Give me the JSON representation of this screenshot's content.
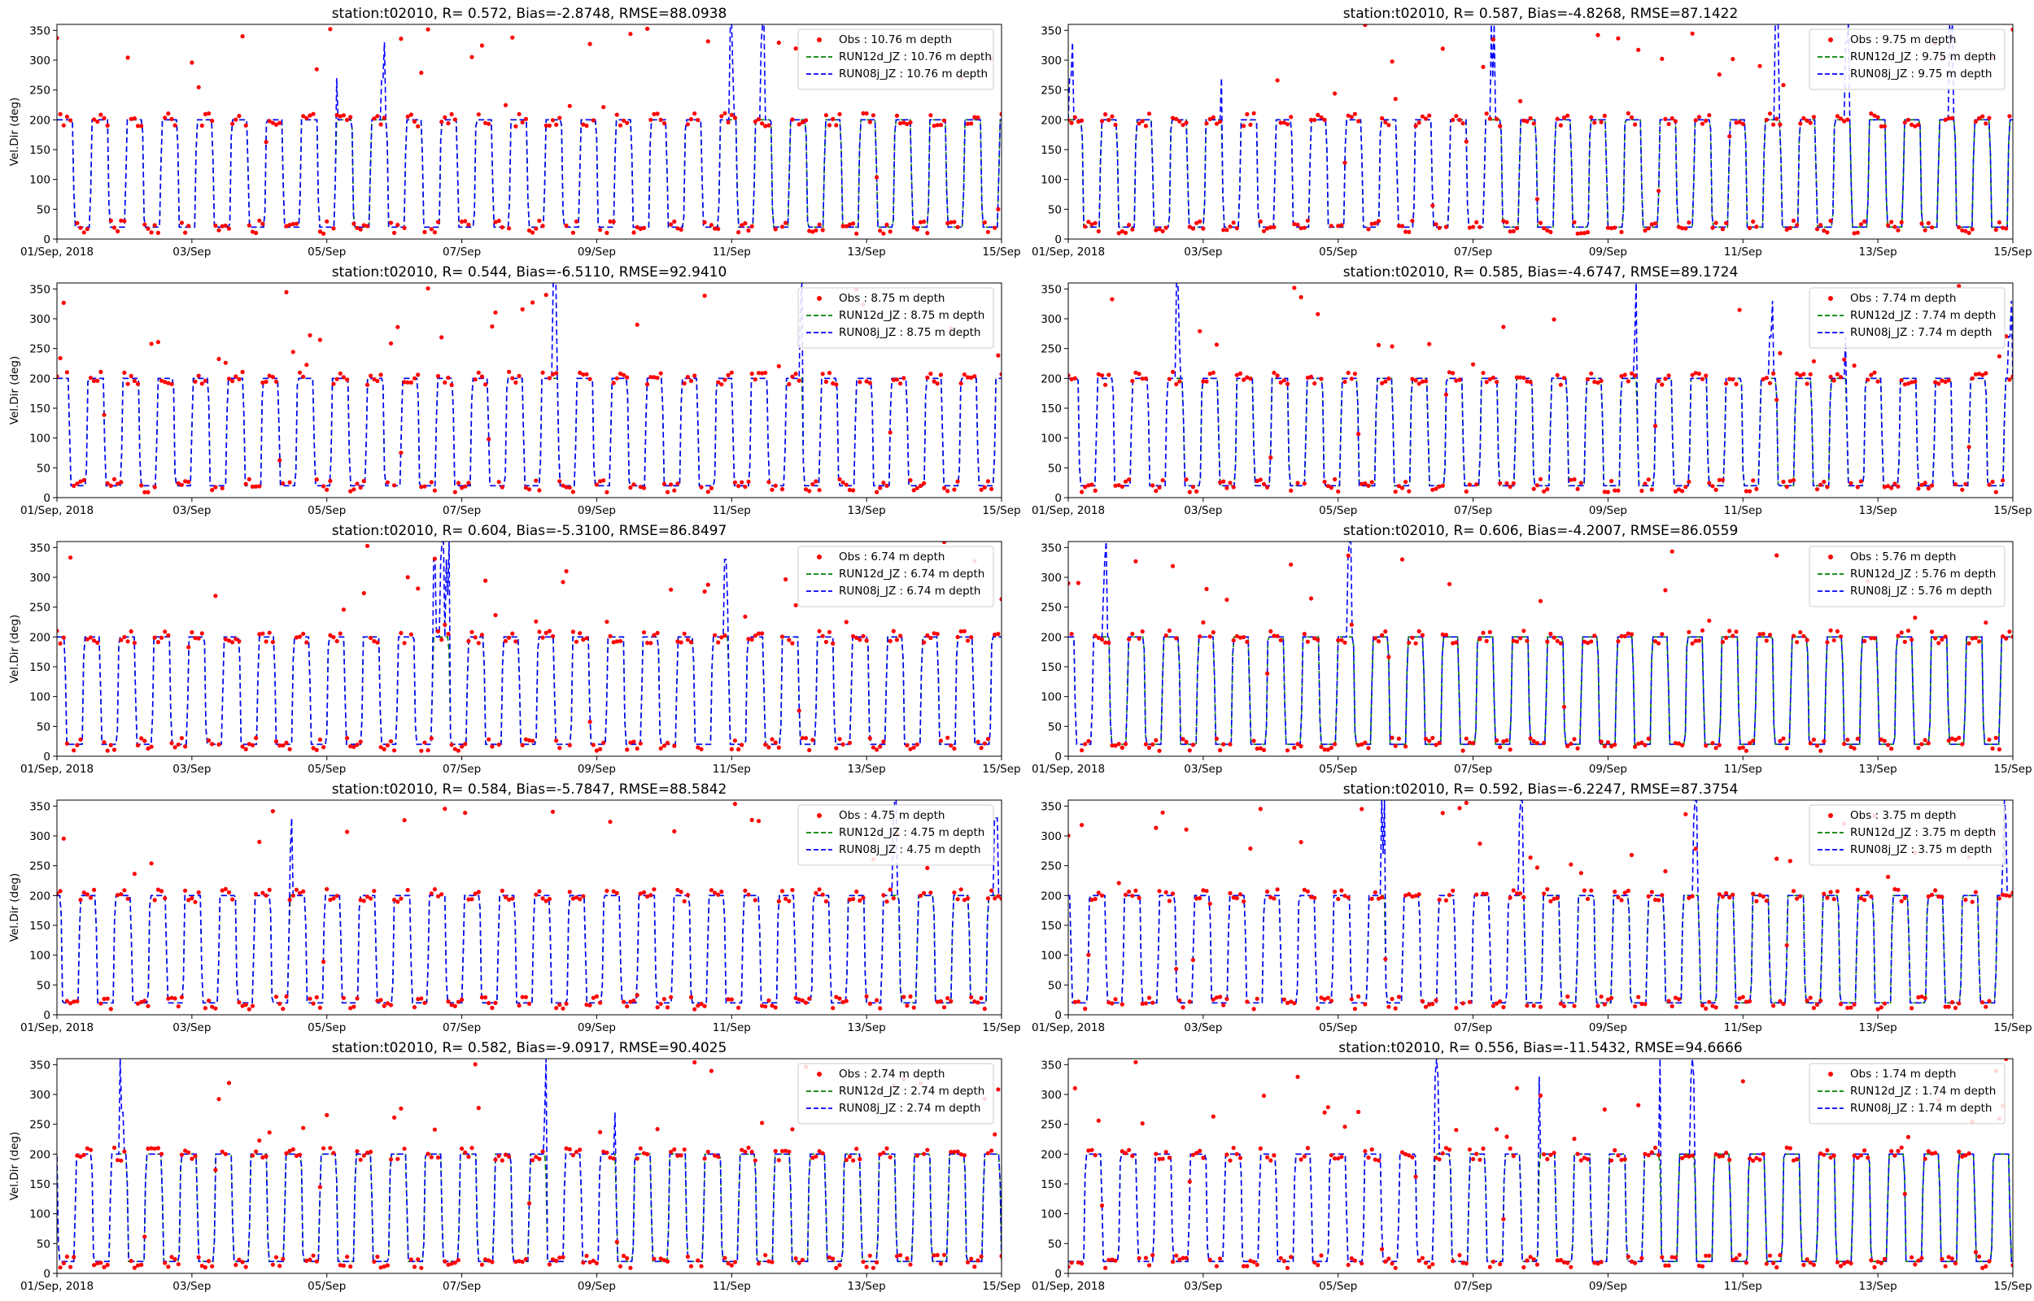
{
  "figure": {
    "station": "station:t02010"
  },
  "colors": {
    "obs": "#ff0000",
    "run12d": "#008000",
    "run08j": "#0000ff",
    "axis": "#000000",
    "legend_border": "#cccccc"
  },
  "chart_data": [
    {
      "type": "scatter+line",
      "title": "station:t02010, R= 0.572, Bias=-2.8748, RMSE=88.0938",
      "depth": "10.76",
      "ylabel": "Vel.Dir (deg)",
      "ylim": [
        0,
        360
      ],
      "yticks": [
        0,
        50,
        100,
        150,
        200,
        250,
        300,
        350
      ],
      "xrange": [
        "2018-09-01",
        "2018-09-15"
      ],
      "xticks": [
        "01/Sep, 2018",
        "03/Sep",
        "05/Sep",
        "07/Sep",
        "09/Sep",
        "11/Sep",
        "13/Sep",
        "15/Sep"
      ],
      "legend_position": "upper right",
      "series": [
        {
          "name": "Obs : 10.76 m depth",
          "kind": "points"
        },
        {
          "name": "RUN12d_JZ : 10.76 m depth",
          "kind": "dashed-line"
        },
        {
          "name": "RUN08j_JZ : 10.76 m depth",
          "kind": "dashed-line"
        }
      ]
    },
    {
      "type": "scatter+line",
      "title": "station:t02010, R= 0.587, Bias=-4.8268, RMSE=87.1422",
      "depth": "9.75",
      "ylabel": "",
      "ylim": [
        0,
        360
      ],
      "yticks": [
        0,
        50,
        100,
        150,
        200,
        250,
        300,
        350
      ],
      "xrange": [
        "2018-09-01",
        "2018-09-15"
      ],
      "xticks": [
        "01/Sep, 2018",
        "03/Sep",
        "05/Sep",
        "07/Sep",
        "09/Sep",
        "11/Sep",
        "13/Sep",
        "15/Sep"
      ],
      "legend_position": "upper right",
      "series": [
        {
          "name": "Obs : 9.75 m depth",
          "kind": "points"
        },
        {
          "name": "RUN12d_JZ : 9.75 m depth",
          "kind": "dashed-line"
        },
        {
          "name": "RUN08j_JZ : 9.75 m depth",
          "kind": "dashed-line"
        }
      ]
    },
    {
      "type": "scatter+line",
      "title": "station:t02010, R= 0.544, Bias=-6.5110, RMSE=92.9410",
      "depth": "8.75",
      "ylabel": "Vel.Dir (deg)",
      "ylim": [
        0,
        360
      ],
      "yticks": [
        0,
        50,
        100,
        150,
        200,
        250,
        300,
        350
      ],
      "xrange": [
        "2018-09-01",
        "2018-09-15"
      ],
      "xticks": [
        "01/Sep, 2018",
        "03/Sep",
        "05/Sep",
        "07/Sep",
        "09/Sep",
        "11/Sep",
        "13/Sep",
        "15/Sep"
      ],
      "legend_position": "upper right",
      "series": [
        {
          "name": "Obs : 8.75 m depth",
          "kind": "points"
        },
        {
          "name": "RUN12d_JZ : 8.75 m depth",
          "kind": "dashed-line"
        },
        {
          "name": "RUN08j_JZ : 8.75 m depth",
          "kind": "dashed-line"
        }
      ]
    },
    {
      "type": "scatter+line",
      "title": "station:t02010, R= 0.585, Bias=-4.6747, RMSE=89.1724",
      "depth": "7.74",
      "ylabel": "",
      "ylim": [
        0,
        360
      ],
      "yticks": [
        0,
        50,
        100,
        150,
        200,
        250,
        300,
        350
      ],
      "xrange": [
        "2018-09-01",
        "2018-09-15"
      ],
      "xticks": [
        "01/Sep, 2018",
        "03/Sep",
        "05/Sep",
        "07/Sep",
        "09/Sep",
        "11/Sep",
        "13/Sep",
        "15/Sep"
      ],
      "legend_position": "upper right",
      "series": [
        {
          "name": "Obs : 7.74 m depth",
          "kind": "points"
        },
        {
          "name": "RUN12d_JZ : 7.74 m depth",
          "kind": "dashed-line"
        },
        {
          "name": "RUN08j_JZ : 7.74 m depth",
          "kind": "dashed-line"
        }
      ]
    },
    {
      "type": "scatter+line",
      "title": "station:t02010, R= 0.604, Bias=-5.3100, RMSE=86.8497",
      "depth": "6.74",
      "ylabel": "Vel.Dir (deg)",
      "ylim": [
        0,
        360
      ],
      "yticks": [
        0,
        50,
        100,
        150,
        200,
        250,
        300,
        350
      ],
      "xrange": [
        "2018-09-01",
        "2018-09-15"
      ],
      "xticks": [
        "01/Sep, 2018",
        "03/Sep",
        "05/Sep",
        "07/Sep",
        "09/Sep",
        "11/Sep",
        "13/Sep",
        "15/Sep"
      ],
      "legend_position": "upper right",
      "series": [
        {
          "name": "Obs : 6.74 m depth",
          "kind": "points"
        },
        {
          "name": "RUN12d_JZ : 6.74 m depth",
          "kind": "dashed-line"
        },
        {
          "name": "RUN08j_JZ : 6.74 m depth",
          "kind": "dashed-line"
        }
      ]
    },
    {
      "type": "scatter+line",
      "title": "station:t02010, R= 0.606, Bias=-4.2007, RMSE=86.0559",
      "depth": "5.76",
      "ylabel": "",
      "ylim": [
        0,
        360
      ],
      "yticks": [
        0,
        50,
        100,
        150,
        200,
        250,
        300,
        350
      ],
      "xrange": [
        "2018-09-01",
        "2018-09-15"
      ],
      "xticks": [
        "01/Sep, 2018",
        "03/Sep",
        "05/Sep",
        "07/Sep",
        "09/Sep",
        "11/Sep",
        "13/Sep",
        "15/Sep"
      ],
      "legend_position": "upper right",
      "series": [
        {
          "name": "Obs : 5.76 m depth",
          "kind": "points"
        },
        {
          "name": "RUN12d_JZ : 5.76 m depth",
          "kind": "dashed-line"
        },
        {
          "name": "RUN08j_JZ : 5.76 m depth",
          "kind": "dashed-line"
        }
      ]
    },
    {
      "type": "scatter+line",
      "title": "station:t02010, R= 0.584, Bias=-5.7847, RMSE=88.5842",
      "depth": "4.75",
      "ylabel": "Vel.Dir (deg)",
      "ylim": [
        0,
        360
      ],
      "yticks": [
        0,
        50,
        100,
        150,
        200,
        250,
        300,
        350
      ],
      "xrange": [
        "2018-09-01",
        "2018-09-15"
      ],
      "xticks": [
        "01/Sep, 2018",
        "03/Sep",
        "05/Sep",
        "07/Sep",
        "09/Sep",
        "11/Sep",
        "13/Sep",
        "15/Sep"
      ],
      "legend_position": "upper right",
      "series": [
        {
          "name": "Obs : 4.75 m depth",
          "kind": "points"
        },
        {
          "name": "RUN12d_JZ : 4.75 m depth",
          "kind": "dashed-line"
        },
        {
          "name": "RUN08j_JZ : 4.75 m depth",
          "kind": "dashed-line"
        }
      ]
    },
    {
      "type": "scatter+line",
      "title": "station:t02010, R= 0.592, Bias=-6.2247, RMSE=87.3754",
      "depth": "3.75",
      "ylabel": "",
      "ylim": [
        0,
        360
      ],
      "yticks": [
        0,
        50,
        100,
        150,
        200,
        250,
        300,
        350
      ],
      "xrange": [
        "2018-09-01",
        "2018-09-15"
      ],
      "xticks": [
        "01/Sep, 2018",
        "03/Sep",
        "05/Sep",
        "07/Sep",
        "09/Sep",
        "11/Sep",
        "13/Sep",
        "15/Sep"
      ],
      "legend_position": "upper right",
      "series": [
        {
          "name": "Obs : 3.75 m depth",
          "kind": "points"
        },
        {
          "name": "RUN12d_JZ : 3.75 m depth",
          "kind": "dashed-line"
        },
        {
          "name": "RUN08j_JZ : 3.75 m depth",
          "kind": "dashed-line"
        }
      ]
    },
    {
      "type": "scatter+line",
      "title": "station:t02010, R= 0.582, Bias=-9.0917, RMSE=90.4025",
      "depth": "2.74",
      "ylabel": "Vel.Dir (deg)",
      "ylim": [
        0,
        360
      ],
      "yticks": [
        0,
        50,
        100,
        150,
        200,
        250,
        300,
        350
      ],
      "xrange": [
        "2018-09-01",
        "2018-09-15"
      ],
      "xticks": [
        "01/Sep, 2018",
        "03/Sep",
        "05/Sep",
        "07/Sep",
        "09/Sep",
        "11/Sep",
        "13/Sep",
        "15/Sep"
      ],
      "legend_position": "upper right",
      "series": [
        {
          "name": "Obs : 2.74 m depth",
          "kind": "points"
        },
        {
          "name": "RUN12d_JZ : 2.74 m depth",
          "kind": "dashed-line"
        },
        {
          "name": "RUN08j_JZ : 2.74 m depth",
          "kind": "dashed-line"
        }
      ]
    },
    {
      "type": "scatter+line",
      "title": "station:t02010, R= 0.556, Bias=-11.5432, RMSE=94.6666",
      "depth": "1.74",
      "ylabel": "",
      "ylim": [
        0,
        360
      ],
      "yticks": [
        0,
        50,
        100,
        150,
        200,
        250,
        300,
        350
      ],
      "xrange": [
        "2018-09-01",
        "2018-09-15"
      ],
      "xticks": [
        "01/Sep, 2018",
        "03/Sep",
        "05/Sep",
        "07/Sep",
        "09/Sep",
        "11/Sep",
        "13/Sep",
        "15/Sep"
      ],
      "legend_position": "upper right",
      "series": [
        {
          "name": "Obs : 1.74 m depth",
          "kind": "points"
        },
        {
          "name": "RUN12d_JZ : 1.74 m depth",
          "kind": "dashed-line"
        },
        {
          "name": "RUN08j_JZ : 1.74 m depth",
          "kind": "dashed-line"
        }
      ]
    }
  ],
  "signal": {
    "days": 14,
    "period_hours": 12.42,
    "high_deg": 200,
    "low_deg": 20,
    "model_spikes_deg": [
      270,
      330,
      360
    ],
    "obs_outliers_deg_range": [
      220,
      360
    ]
  }
}
